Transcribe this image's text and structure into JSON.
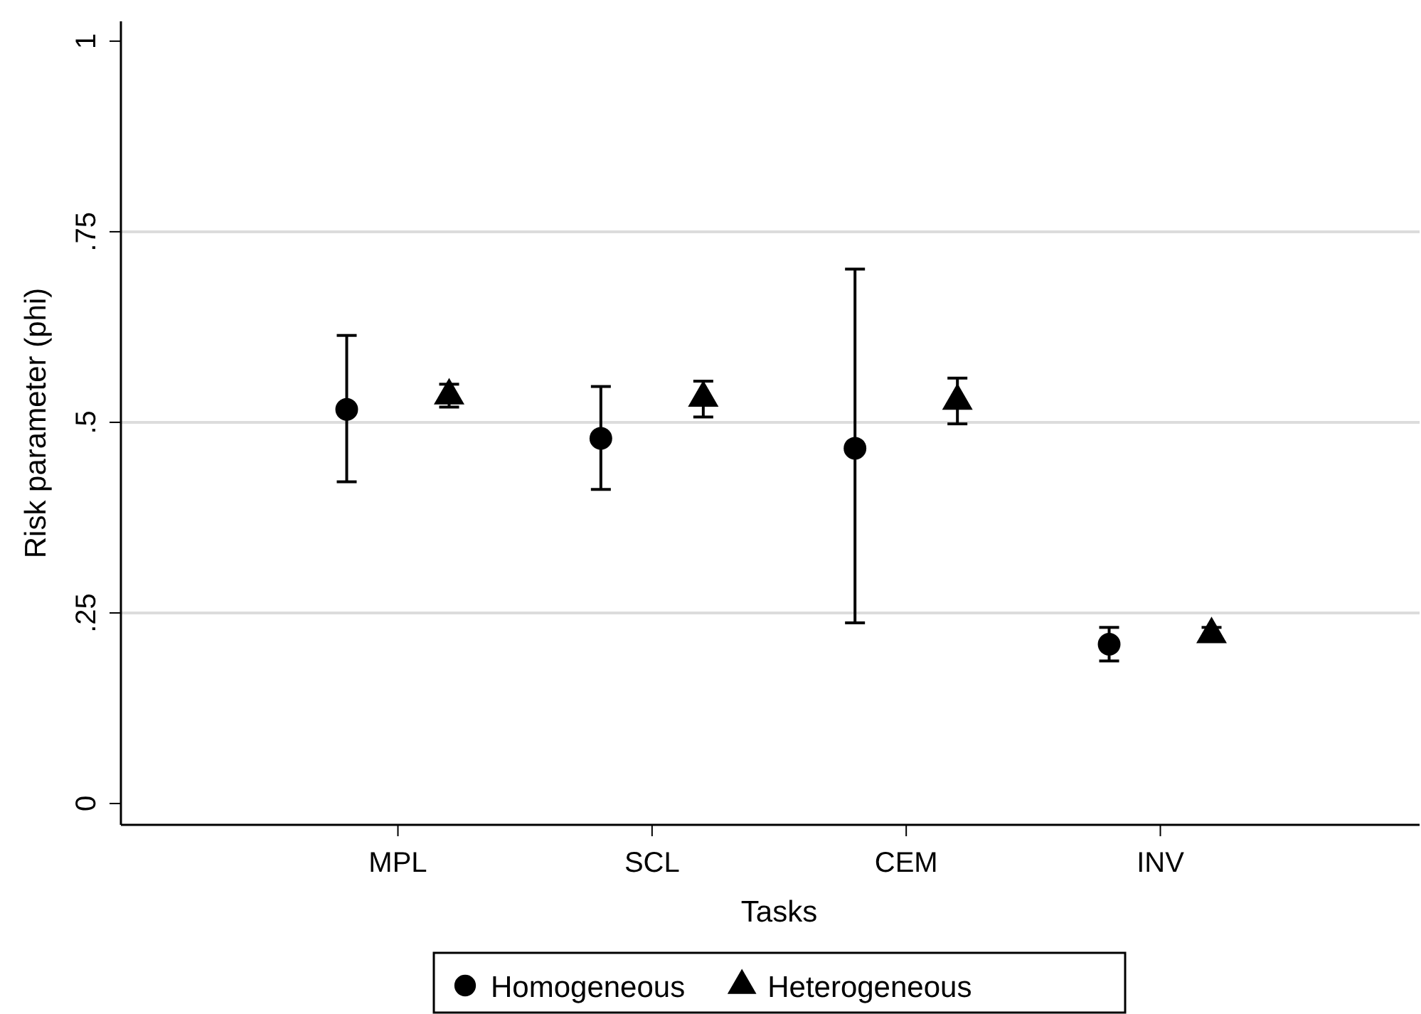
{
  "chart_data": {
    "type": "scatter",
    "xlabel": "Tasks",
    "ylabel": "Risk parameter (phi)",
    "categories": [
      "MPL",
      "SCL",
      "CEM",
      "INV"
    ],
    "ylim": [
      -0.028,
      1.026
    ],
    "yticks": [
      {
        "value": 0,
        "label": "0"
      },
      {
        "value": 0.25,
        "label": ".25"
      },
      {
        "value": 0.5,
        "label": ".5"
      },
      {
        "value": 0.75,
        "label": ".75"
      },
      {
        "value": 1,
        "label": "1"
      }
    ],
    "grid": "y",
    "legend": "bottom",
    "series": [
      {
        "name": "Homogeneous",
        "color": "#000000",
        "marker": "circle",
        "values": [
          0.517,
          0.479,
          0.466,
          0.209
        ],
        "errors": [
          [
            0.422,
            0.614
          ],
          [
            0.412,
            0.547
          ],
          [
            0.237,
            0.701
          ],
          [
            0.187,
            0.231
          ]
        ]
      },
      {
        "name": "Heterogeneous",
        "color": "#000000",
        "marker": "triangle",
        "values": [
          0.535,
          0.532,
          0.528,
          0.222
        ],
        "errors": [
          [
            0.52,
            0.55
          ],
          [
            0.507,
            0.554
          ],
          [
            0.498,
            0.558
          ],
          [
            0.213,
            0.231
          ]
        ]
      }
    ]
  }
}
